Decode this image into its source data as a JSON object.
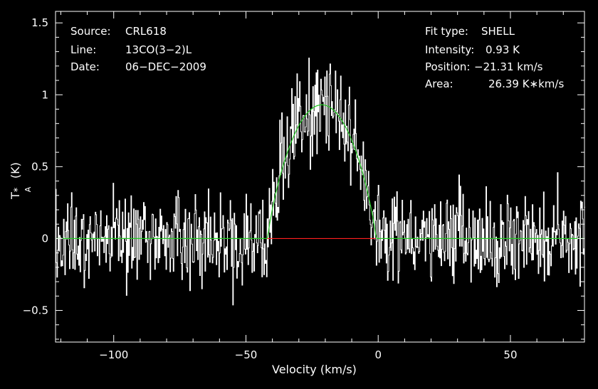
{
  "chart_data": {
    "type": "line",
    "xlabel": "Velocity (km/s)",
    "ylabel_main": "T",
    "ylabel_sup": "*",
    "ylabel_sub": "A",
    "ylabel_unit": "(K)",
    "xlim": [
      -122,
      78
    ],
    "ylim": [
      -0.72,
      1.58
    ],
    "x_ticks": [
      -100,
      -50,
      0,
      50
    ],
    "x_tick_labels": [
      "−100",
      "−50",
      "0",
      "50"
    ],
    "y_ticks": [
      -0.5,
      0,
      0.5,
      1,
      1.5
    ],
    "y_tick_labels": [
      "−0.5",
      "0",
      "0.5",
      "1",
      "1.5"
    ],
    "grid": false,
    "colors": {
      "spectrum": "#ffffff",
      "fit": "#22cc22",
      "baseline": "#ff2020",
      "axes": "#ffffff"
    },
    "series": [
      {
        "role": "spectrum",
        "step_kms": 0.25,
        "noise_rms_K": 0.17,
        "x_range": [
          -122,
          78
        ]
      },
      {
        "role": "fit",
        "fit_type": "SHELL",
        "center_kms": -21.31,
        "peak_K": 0.93,
        "half_width_kms": 20.5
      },
      {
        "role": "fit_region",
        "x_range": [
          -42,
          -1
        ],
        "y": 0
      }
    ]
  },
  "info_left": [
    {
      "key": "Source:",
      "value": "CRL618"
    },
    {
      "key": "Line:",
      "value": "13CO(3−2)L"
    },
    {
      "key": "Date:",
      "value": "06−DEC−2009"
    }
  ],
  "info_right": [
    {
      "key": "Fit type:",
      "value": "SHELL"
    },
    {
      "key": "Intensity:",
      "value": "0.93 K"
    },
    {
      "key": "Position:",
      "value": "−21.31 km/s"
    },
    {
      "key": "Area:",
      "value": "26.39 K∗km/s"
    }
  ]
}
